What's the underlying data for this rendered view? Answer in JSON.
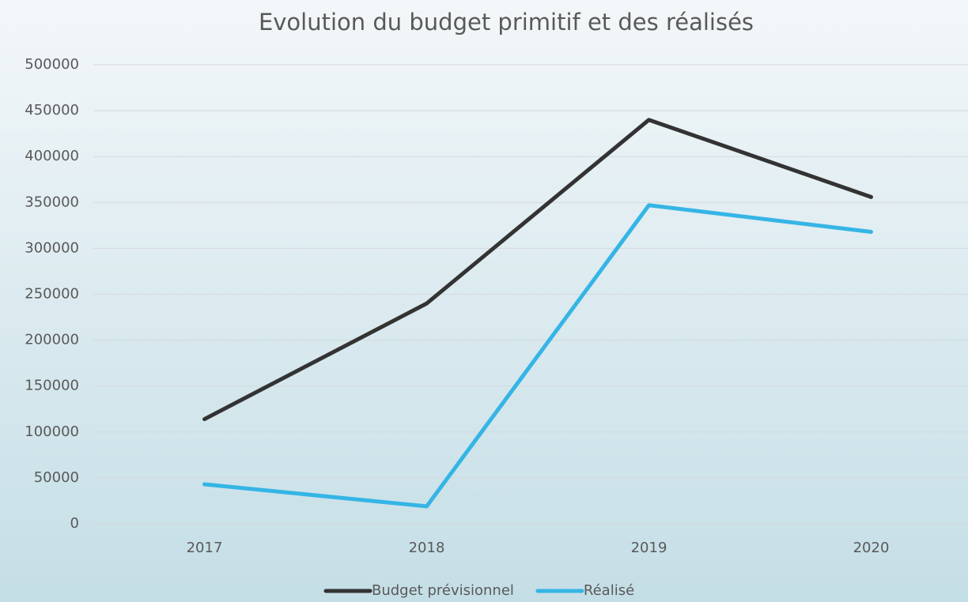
{
  "chart_data": {
    "type": "line",
    "title": "Evolution du budget primitif et des réalisés",
    "categories": [
      "2017",
      "2018",
      "2019",
      "2020"
    ],
    "series": [
      {
        "name": "Budget prévisionnel",
        "color": "#333333",
        "values": [
          114000,
          240000,
          440000,
          356000
        ]
      },
      {
        "name": "Réalisé",
        "color": "#35b5e5",
        "values": [
          43000,
          19000,
          347000,
          318000
        ]
      }
    ],
    "ylim": [
      0,
      500000
    ],
    "yticks": [
      0,
      50000,
      100000,
      150000,
      200000,
      250000,
      300000,
      350000,
      400000,
      450000,
      500000
    ],
    "grid": true,
    "legend": "bottom"
  }
}
